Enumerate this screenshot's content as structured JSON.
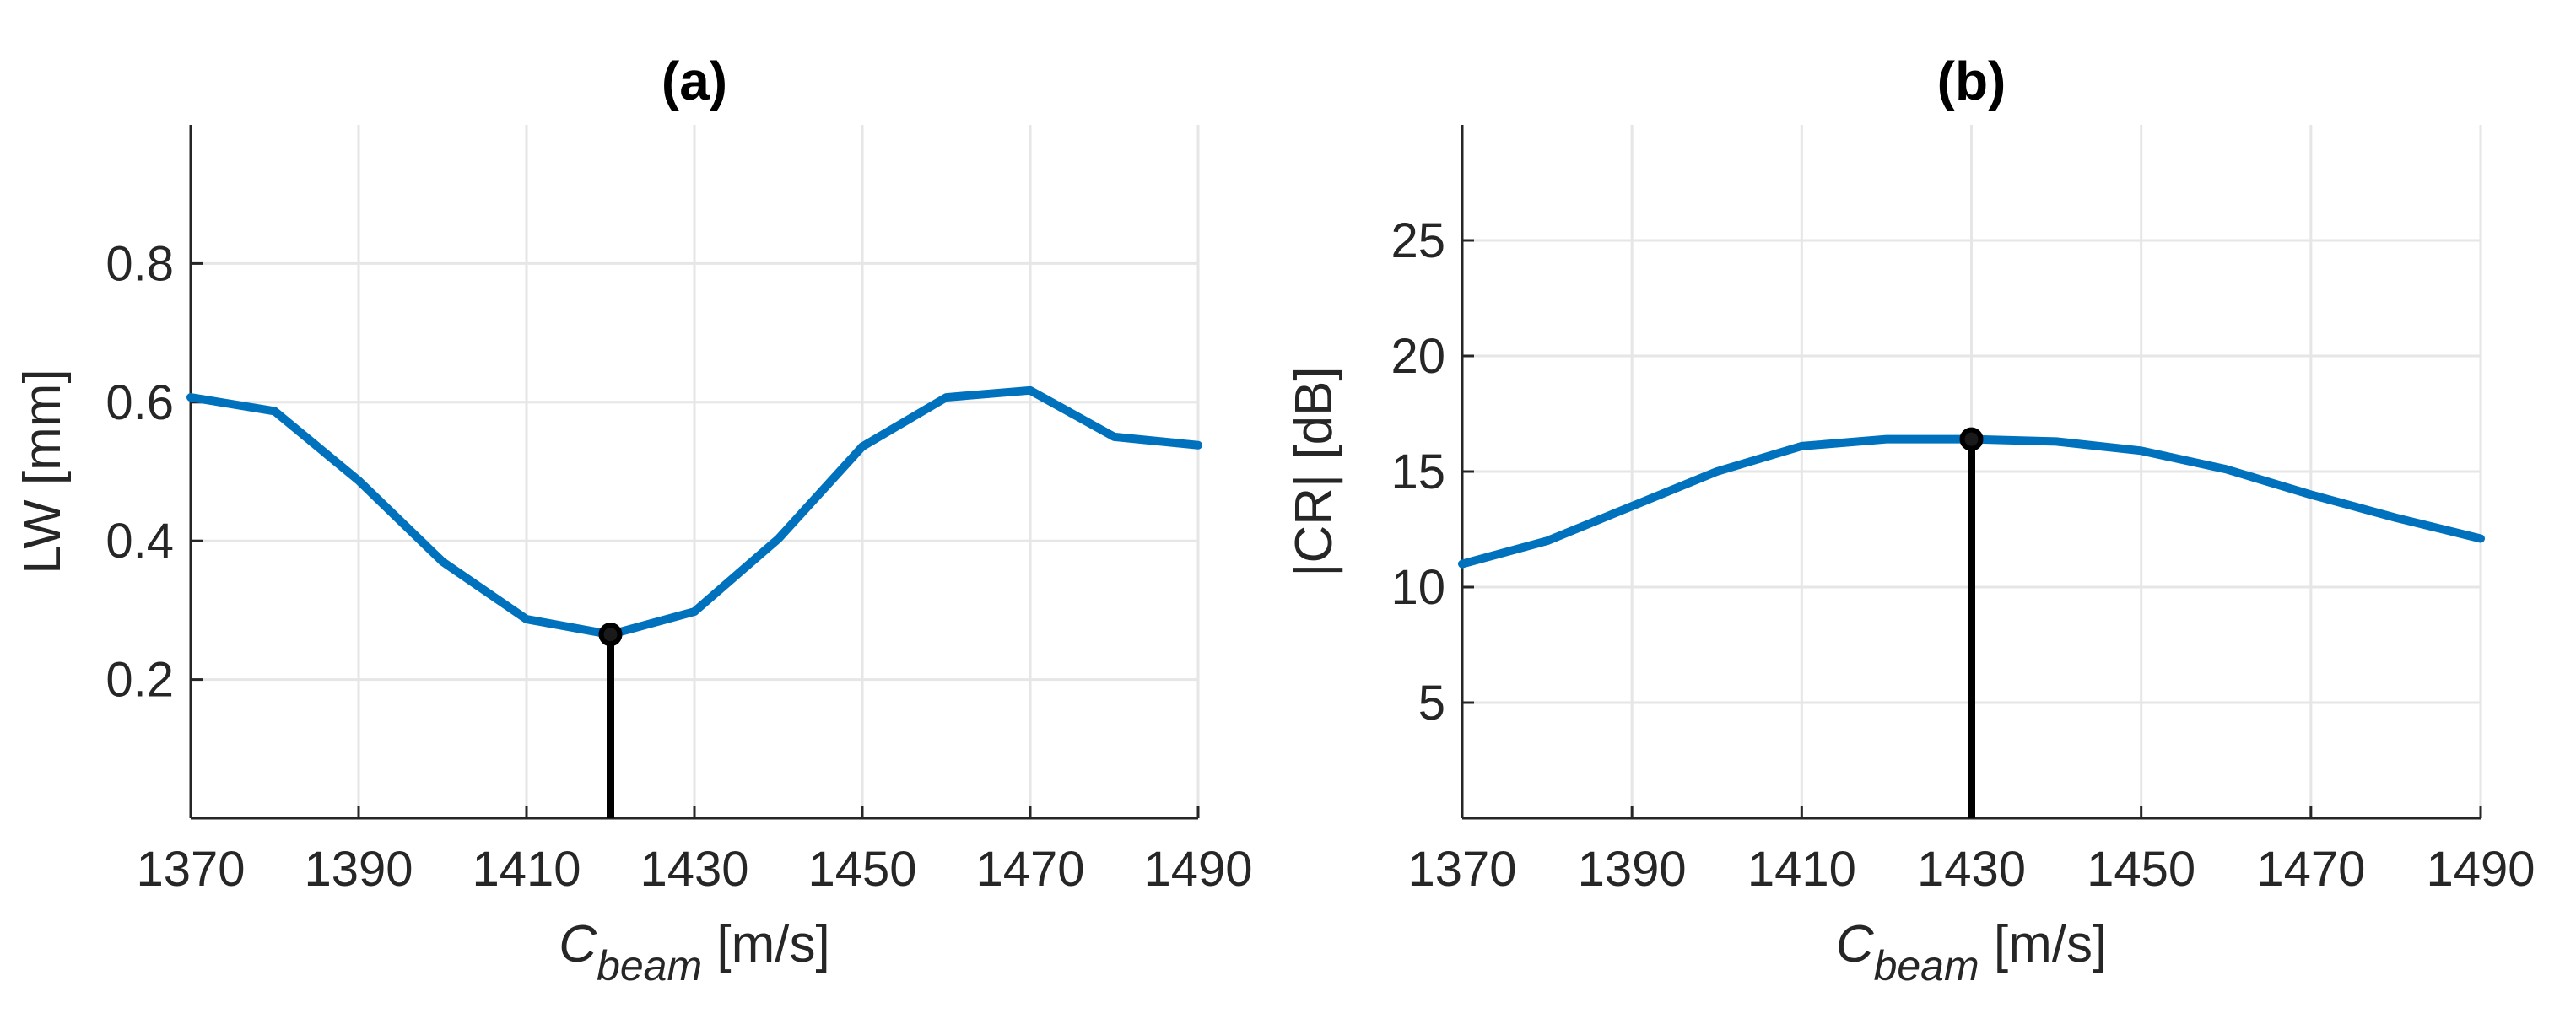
{
  "chart_data": [
    {
      "type": "line",
      "title": "(a)",
      "xlabel_main": "C",
      "xlabel_sub": "beam",
      "xlabel_units": "[m/s]",
      "ylabel": "LW [mm]",
      "xlim": [
        1370,
        1490
      ],
      "ylim": [
        0,
        1.0
      ],
      "xticks": [
        1370,
        1390,
        1410,
        1430,
        1450,
        1470,
        1490
      ],
      "yticks": [
        0.2,
        0.4,
        0.6,
        0.8
      ],
      "ytick_labels": [
        "0.2",
        "0.4",
        "0.6",
        "0.8"
      ],
      "grid": true,
      "series_color": "#0072bd",
      "x": [
        1370,
        1380,
        1390,
        1400,
        1410,
        1420,
        1430,
        1440,
        1450,
        1460,
        1470,
        1480,
        1490
      ],
      "y": [
        0.607,
        0.587,
        0.487,
        0.37,
        0.287,
        0.265,
        0.298,
        0.403,
        0.536,
        0.607,
        0.617,
        0.55,
        0.538
      ],
      "stem": {
        "x": 1420,
        "y": 0.265
      }
    },
    {
      "type": "line",
      "title": "(b)",
      "xlabel_main": "C",
      "xlabel_sub": "beam",
      "xlabel_units": "[m/s]",
      "ylabel": "|CR| [dB]",
      "xlim": [
        1370,
        1490
      ],
      "ylim": [
        0,
        30
      ],
      "xticks": [
        1370,
        1390,
        1410,
        1430,
        1450,
        1470,
        1490
      ],
      "yticks": [
        5,
        10,
        15,
        20,
        25
      ],
      "ytick_labels": [
        "5",
        "10",
        "15",
        "20",
        "25"
      ],
      "grid": true,
      "series_color": "#0072bd",
      "x": [
        1370,
        1380,
        1390,
        1400,
        1410,
        1420,
        1430,
        1440,
        1450,
        1460,
        1470,
        1480,
        1490
      ],
      "y": [
        11.0,
        12.0,
        13.5,
        15.0,
        16.1,
        16.4,
        16.4,
        16.3,
        15.9,
        15.1,
        14.0,
        13.0,
        12.1
      ],
      "stem": {
        "x": 1430,
        "y": 16.4
      }
    }
  ]
}
